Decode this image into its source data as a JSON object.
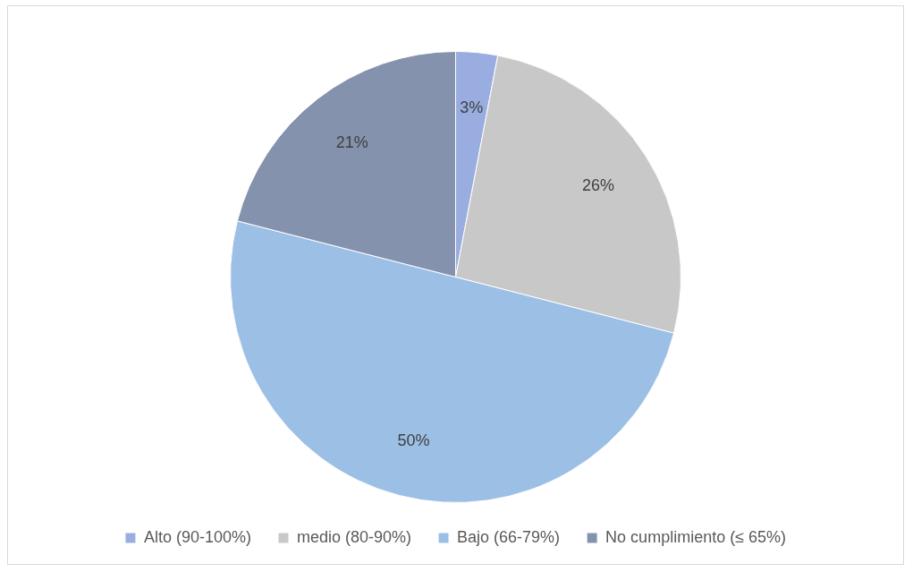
{
  "chart_data": {
    "type": "pie",
    "categories": [
      "Alto (90-100%)",
      "medio (80-90%)",
      "Bajo (66-79%)",
      "No cumplimiento (≤ 65%)"
    ],
    "values": [
      3,
      26,
      50,
      21
    ],
    "colors": [
      "#99ade0",
      "#c8c8c8",
      "#9cbfe6",
      "#8592ad"
    ],
    "value_labels": [
      "3%",
      "26%",
      "50%",
      "21%"
    ],
    "legend": "bottom"
  }
}
